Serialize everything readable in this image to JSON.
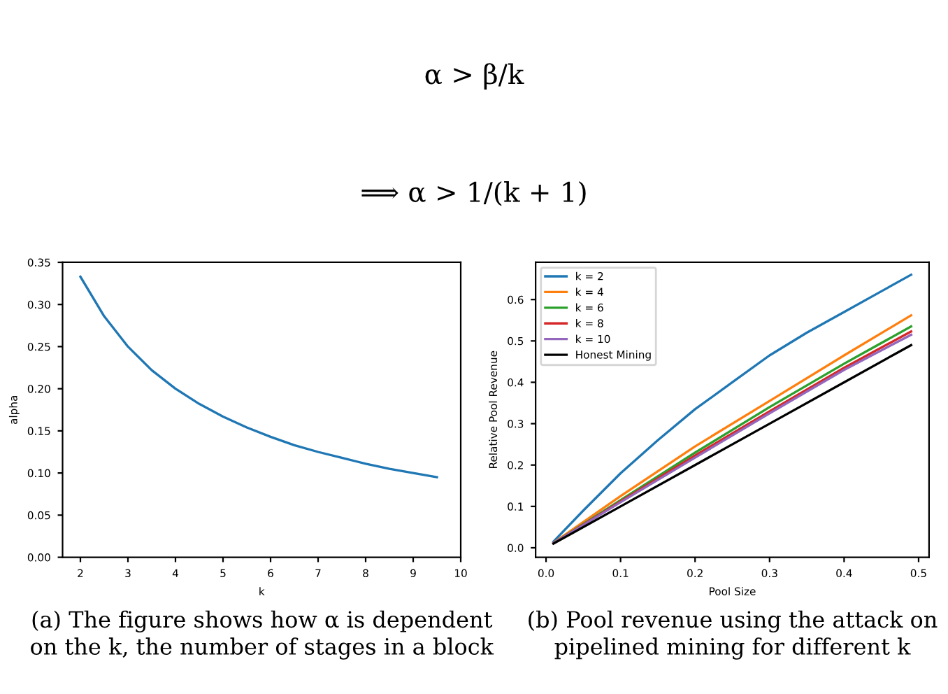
{
  "chart_data": [
    {
      "type": "line",
      "xlabel": "k",
      "ylabel": "alpha",
      "x": [
        2,
        2.5,
        3,
        3.5,
        4,
        4.5,
        5,
        5.5,
        6,
        6.5,
        7,
        7.5,
        8,
        8.5,
        9,
        9.5
      ],
      "series": [
        {
          "color": "#1f77b4",
          "values": [
            0.333,
            0.286,
            0.25,
            0.222,
            0.2,
            0.182,
            0.167,
            0.154,
            0.143,
            0.133,
            0.125,
            0.118,
            0.111,
            0.105,
            0.1,
            0.095
          ]
        }
      ],
      "xlim": [
        1.625,
        10
      ],
      "xticks": [
        2,
        3,
        4,
        5,
        6,
        7,
        8,
        9,
        10
      ],
      "ylim": [
        0,
        0.35
      ],
      "yticks": [
        {
          "value": 0,
          "label": "0.00"
        },
        {
          "value": 0.05,
          "label": "0.05"
        },
        {
          "value": 0.1,
          "label": "0.10"
        },
        {
          "value": 0.15,
          "label": "0.15"
        },
        {
          "value": 0.2,
          "label": "0.20"
        },
        {
          "value": 0.25,
          "label": "0.25"
        },
        {
          "value": 0.3,
          "label": "0.30"
        },
        {
          "value": 0.35,
          "label": "0.35"
        }
      ],
      "grid": false,
      "legend": false,
      "annotations": [
        "α > β/k",
        "⟹ α > 1/(k + 1)",
        "(a) The figure shows how α is dependent\non the k, the number of stages in a block"
      ]
    },
    {
      "type": "line",
      "xlabel": "Pool Size",
      "ylabel": "Relative Pool Revenue",
      "series": [
        {
          "name": "k = 2",
          "color": "#1f77b4",
          "x": [
            0.01,
            0.05,
            0.1,
            0.15,
            0.2,
            0.25,
            0.3,
            0.35,
            0.4,
            0.45,
            0.49
          ],
          "values": [
            0.015,
            0.09,
            0.18,
            0.26,
            0.335,
            0.4,
            0.465,
            0.52,
            0.57,
            0.62,
            0.66
          ]
        },
        {
          "name": "k = 4",
          "color": "#ff7f0e",
          "x": [
            0.01,
            0.1,
            0.2,
            0.3,
            0.4,
            0.49
          ],
          "values": [
            0.012,
            0.125,
            0.245,
            0.355,
            0.465,
            0.562
          ]
        },
        {
          "name": "k = 6",
          "color": "#2ca02c",
          "x": [
            0.01,
            0.1,
            0.2,
            0.3,
            0.4,
            0.49
          ],
          "values": [
            0.011,
            0.115,
            0.23,
            0.34,
            0.445,
            0.535
          ]
        },
        {
          "name": "k = 8",
          "color": "#d62728",
          "x": [
            0.01,
            0.1,
            0.2,
            0.3,
            0.4,
            0.49
          ],
          "values": [
            0.011,
            0.112,
            0.223,
            0.33,
            0.435,
            0.523
          ]
        },
        {
          "name": "k = 10",
          "color": "#9467bd",
          "x": [
            0.01,
            0.1,
            0.2,
            0.3,
            0.4,
            0.49
          ],
          "values": [
            0.011,
            0.11,
            0.218,
            0.325,
            0.43,
            0.515
          ]
        },
        {
          "name": "Honest Mining",
          "color": "#000000",
          "x": [
            0.01,
            0.1,
            0.2,
            0.3,
            0.4,
            0.49
          ],
          "values": [
            0.01,
            0.1,
            0.2,
            0.3,
            0.4,
            0.49
          ]
        }
      ],
      "xlim": [
        -0.014,
        0.514
      ],
      "xticks": [
        {
          "value": 0,
          "label": "0.0"
        },
        0.1,
        0.2,
        0.3,
        0.4,
        0.5
      ],
      "ylim": [
        -0.023,
        0.69
      ],
      "yticks": [
        {
          "value": 0,
          "label": "0.0"
        },
        0.1,
        0.2,
        0.3,
        0.4,
        0.5,
        0.6
      ],
      "grid": false,
      "legend": "top left",
      "annotations": [
        "(b) Pool revenue using the attack on\npipelined mining for different k"
      ]
    }
  ]
}
